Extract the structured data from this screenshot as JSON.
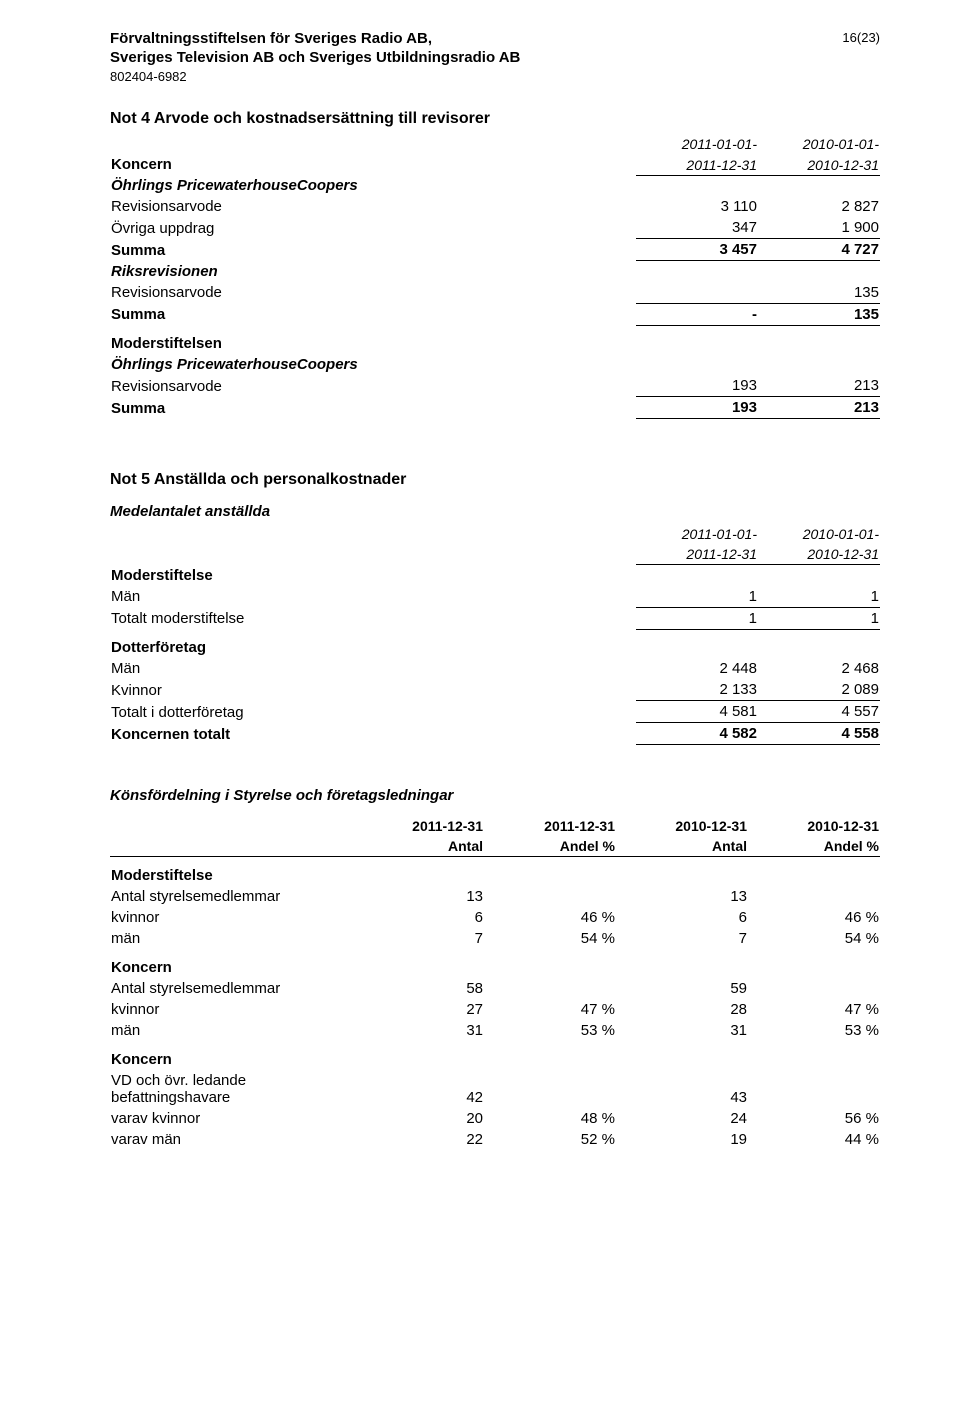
{
  "header": {
    "line1": "Förvaltningsstiftelsen för Sveriges Radio AB,",
    "line2": "Sveriges Television AB och Sveriges Utbildningsradio AB",
    "orgnr": "802404-6982",
    "pagenum": "16(23)"
  },
  "not4": {
    "title": "Not 4  Arvode och kostnadsersättning till revisorer",
    "period_cur_a": "2011-01-01-",
    "period_cur_b": "2011-12-31",
    "period_prev_a": "2010-01-01-",
    "period_prev_b": "2010-12-31",
    "koncern": "Koncern",
    "ohrlings": "Öhrlings PricewaterhouseCoopers",
    "rev_arvode": "Revisionsarvode",
    "rev_arvode_cur": "3 110",
    "rev_arvode_prev": "2 827",
    "ovriga": "Övriga uppdrag",
    "ovriga_cur": "347",
    "ovriga_prev": "1 900",
    "summa": "Summa",
    "summa1_cur": "3 457",
    "summa1_prev": "4 727",
    "riks": "Riksrevisionen",
    "riks_rev_cur": "",
    "riks_rev_prev": "135",
    "summa2_cur": "-",
    "summa2_prev": "135",
    "moderst_head": "Moderstiftelsen",
    "m_rev_cur": "193",
    "m_rev_prev": "213",
    "m_summa_cur": "193",
    "m_summa_prev": "213"
  },
  "not5": {
    "title": "Not 5  Anställda och personalkostnader",
    "medel_title": "Medelantalet anställda",
    "period_cur_a": "2011-01-01-",
    "period_cur_b": "2011-12-31",
    "period_prev_a": "2010-01-01-",
    "period_prev_b": "2010-12-31",
    "moderst": "Moderstiftelse",
    "man": "Män",
    "man_cur": "1",
    "man_prev": "1",
    "tot_moder": "Totalt moderstiftelse",
    "tot_moder_cur": "1",
    "tot_moder_prev": "1",
    "dotter": "Dotterföretag",
    "d_man_cur": "2 448",
    "d_man_prev": "2 468",
    "kvinnor": "Kvinnor",
    "d_kv_cur": "2 133",
    "d_kv_prev": "2 089",
    "tot_dotter": "Totalt i dotterföretag",
    "tot_dotter_cur": "4 581",
    "tot_dotter_prev": "4 557",
    "konc_tot": "Koncernen totalt",
    "konc_tot_cur": "4 582",
    "konc_tot_prev": "4 558"
  },
  "kons": {
    "title": "Könsfördelning i Styrelse och företagsledningar",
    "h1a": "2011-12-31",
    "h1b": "Antal",
    "h2a": "2011-12-31",
    "h2b": "Andel %",
    "h3a": "2010-12-31",
    "h3b": "Antal",
    "h4a": "2010-12-31",
    "h4b": "Andel %",
    "moderst": "Moderstiftelse",
    "antal_sty": "Antal styrelsemedlemmar",
    "kvinnor": "kvinnor",
    "man": "män",
    "koncern": "Koncern",
    "vd_row": "VD och övr. ledande befattningshavare",
    "varav_kv": "varav kvinnor",
    "varav_man": "varav män",
    "m_antal_c": "13",
    "m_antal_p": "13",
    "m_kv_c": "6",
    "m_kv_pc": "46 %",
    "m_kv_p": "6",
    "m_kv_pp": "46 %",
    "m_man_c": "7",
    "m_man_pc": "54 %",
    "m_man_p": "7",
    "m_man_pp": "54 %",
    "k_antal_c": "58",
    "k_antal_p": "59",
    "k_kv_c": "27",
    "k_kv_pc": "47 %",
    "k_kv_p": "28",
    "k_kv_pp": "47 %",
    "k_man_c": "31",
    "k_man_pc": "53 %",
    "k_man_p": "31",
    "k_man_pp": "53 %",
    "vd_c": "42",
    "vd_p": "43",
    "vd_kv_c": "20",
    "vd_kv_pc": "48 %",
    "vd_kv_p": "24",
    "vd_kv_pp": "56 %",
    "vd_man_c": "22",
    "vd_man_pc": "52 %",
    "vd_man_p": "19",
    "vd_man_pp": "44 %"
  }
}
